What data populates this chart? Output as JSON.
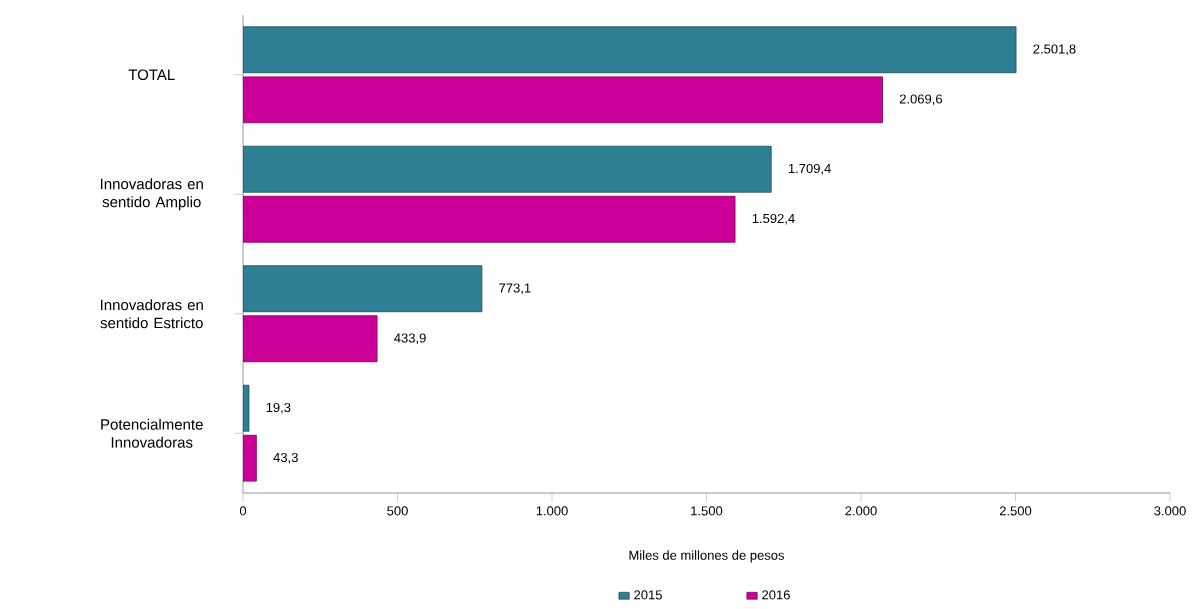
{
  "chart_data": {
    "type": "bar",
    "orientation": "horizontal",
    "xlabel": "Miles de millones de pesos",
    "categories": [
      "TOTAL",
      "Innovadoras en sentido Amplio",
      "Innovadoras en sentido Estricto",
      "Potencialmente Innovadoras"
    ],
    "series": [
      {
        "name": "2015",
        "color": "#2e7f93",
        "values": [
          2501.8,
          1709.4,
          773.1,
          19.3
        ],
        "value_labels": [
          "2.501,8",
          "1.709,4",
          "773,1",
          "19,3"
        ]
      },
      {
        "name": "2016",
        "color": "#cc0099",
        "values": [
          2069.6,
          1592.4,
          433.9,
          43.3
        ],
        "value_labels": [
          "2.069,6",
          "1.592,4",
          "433,9",
          "43,3"
        ]
      }
    ],
    "xlim": [
      0,
      3000
    ],
    "xticks": [
      0,
      500,
      {
        "value": 1000,
        "label": "1.000"
      },
      {
        "value": 1500,
        "label": "1.500"
      },
      {
        "value": 2000,
        "label": "2.000"
      },
      {
        "value": 2500,
        "label": "2.500"
      },
      {
        "value": 3000,
        "label": "3.000"
      }
    ],
    "legend": "bottom",
    "grid": false
  }
}
